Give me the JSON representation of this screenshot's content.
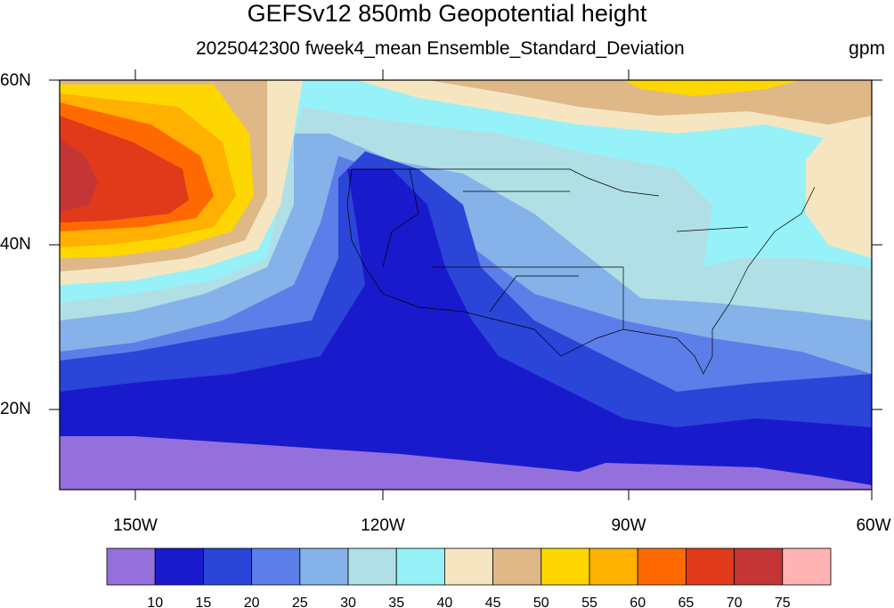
{
  "title": "GEFSv12 850mb Geopotential height",
  "subtitle": "2025042300 fweek4_mean Ensemble_Standard_Deviation",
  "units": "gpm",
  "lat_labels": [
    "60N",
    "40N",
    "20N"
  ],
  "lon_labels": [
    "150W",
    "120W",
    "90W",
    "60W"
  ],
  "legend": {
    "labels": [
      "10",
      "15",
      "20",
      "25",
      "30",
      "35",
      "40",
      "45",
      "50",
      "55",
      "60",
      "65",
      "70",
      "75"
    ],
    "colors": [
      "#9370db",
      "#1a1acd",
      "#2a45d8",
      "#5c7ee8",
      "#86b2ea",
      "#b0e0e6",
      "#96f2f8",
      "#f5e6c1",
      "#deb887",
      "#ffd700",
      "#ffb000",
      "#ff6a00",
      "#e03a1a",
      "#c43535",
      "#ffb3b3"
    ]
  }
}
